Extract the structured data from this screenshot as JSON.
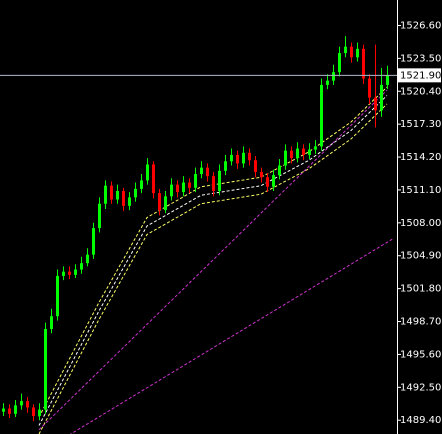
{
  "chart_data": {
    "type": "candlestick",
    "ylim": [
      1488.1,
      1529.0
    ],
    "yticks": [
      {
        "value": 1526.6,
        "label": "1526.60"
      },
      {
        "value": 1523.5,
        "label": "1523.50"
      },
      {
        "value": 1520.4,
        "label": "1520.40"
      },
      {
        "value": 1517.3,
        "label": "1517.30"
      },
      {
        "value": 1514.2,
        "label": "1514.20"
      },
      {
        "value": 1511.1,
        "label": "1511.10"
      },
      {
        "value": 1508.0,
        "label": "1508.00"
      },
      {
        "value": 1504.9,
        "label": "1504.90"
      },
      {
        "value": 1501.8,
        "label": "1501.80"
      },
      {
        "value": 1498.7,
        "label": "1498.70"
      },
      {
        "value": 1495.6,
        "label": "1495.60"
      },
      {
        "value": 1492.5,
        "label": "1492.50"
      },
      {
        "value": 1489.4,
        "label": "1489.40"
      }
    ],
    "current_price": {
      "value": 1521.9,
      "label": "1521.90"
    },
    "up_color": "#00ff00",
    "down_color": "#ff0000",
    "open": [
      1490.2,
      1490.5,
      1490.0,
      1490.8,
      1491.2,
      1490.6,
      1489.8,
      1490.4,
      1498.0,
      1499.2,
      1503.0,
      1503.4,
      1503.1,
      1503.6,
      1504.2,
      1505.0,
      1507.5,
      1509.8,
      1511.5,
      1510.2,
      1511.0,
      1509.6,
      1510.4,
      1511.2,
      1512.0,
      1513.5,
      1510.8,
      1509.2,
      1510.5,
      1511.6,
      1510.9,
      1511.8,
      1511.3,
      1512.6,
      1513.2,
      1512.4,
      1511.0,
      1512.9,
      1513.8,
      1514.4,
      1513.6,
      1514.6,
      1513.9,
      1512.8,
      1512.3,
      1511.4,
      1512.5,
      1513.4,
      1514.8,
      1514.1,
      1515.0,
      1514.4,
      1514.9,
      1515.2,
      1521.0,
      1521.4,
      1522.2,
      1524.0,
      1524.6,
      1523.6,
      1524.4,
      1521.6,
      1519.8,
      1518.6,
      1521.0
    ],
    "high": [
      1491.0,
      1490.9,
      1491.3,
      1491.9,
      1491.6,
      1490.9,
      1491.0,
      1498.6,
      1499.9,
      1503.6,
      1503.9,
      1503.9,
      1504.1,
      1504.8,
      1505.6,
      1508.0,
      1510.4,
      1512.0,
      1511.9,
      1511.6,
      1511.3,
      1510.9,
      1511.8,
      1512.6,
      1514.1,
      1513.8,
      1511.2,
      1511.0,
      1512.2,
      1512.0,
      1512.4,
      1512.2,
      1513.2,
      1513.8,
      1513.6,
      1512.8,
      1513.5,
      1514.4,
      1515.0,
      1514.8,
      1515.2,
      1515.0,
      1514.3,
      1513.2,
      1512.7,
      1513.0,
      1514.0,
      1515.4,
      1515.2,
      1515.6,
      1515.4,
      1515.5,
      1515.8,
      1521.6,
      1522.0,
      1522.9,
      1524.6,
      1525.6,
      1525.0,
      1525.0,
      1524.8,
      1522.0,
      1524.8,
      1522.6,
      1522.8
    ],
    "low": [
      1489.8,
      1489.6,
      1489.7,
      1490.4,
      1490.1,
      1489.3,
      1489.4,
      1490.0,
      1497.6,
      1498.8,
      1502.6,
      1502.7,
      1502.8,
      1503.2,
      1503.9,
      1504.6,
      1507.1,
      1509.3,
      1509.8,
      1509.8,
      1509.1,
      1509.2,
      1510.0,
      1510.8,
      1511.6,
      1510.3,
      1508.7,
      1508.9,
      1510.1,
      1510.4,
      1510.5,
      1510.8,
      1510.9,
      1512.2,
      1511.9,
      1510.5,
      1510.6,
      1512.5,
      1513.4,
      1513.1,
      1513.2,
      1513.4,
      1512.3,
      1511.8,
      1510.9,
      1511.0,
      1512.1,
      1513.0,
      1513.6,
      1513.7,
      1513.9,
      1514.0,
      1514.5,
      1514.8,
      1520.6,
      1521.0,
      1521.8,
      1523.6,
      1523.1,
      1523.2,
      1521.1,
      1519.2,
      1517.0,
      1518.0,
      1520.6
    ],
    "close": [
      1490.5,
      1490.0,
      1490.8,
      1491.2,
      1490.6,
      1489.8,
      1490.4,
      1498.0,
      1499.2,
      1503.0,
      1503.4,
      1503.1,
      1503.6,
      1504.2,
      1505.0,
      1507.5,
      1509.8,
      1511.5,
      1510.2,
      1511.0,
      1509.6,
      1510.4,
      1511.2,
      1512.0,
      1513.5,
      1510.8,
      1509.2,
      1510.5,
      1511.6,
      1510.9,
      1511.8,
      1511.3,
      1512.6,
      1513.2,
      1512.4,
      1511.0,
      1512.9,
      1513.8,
      1514.4,
      1513.6,
      1514.6,
      1513.9,
      1512.8,
      1512.3,
      1511.4,
      1512.5,
      1513.4,
      1514.8,
      1514.1,
      1515.0,
      1514.4,
      1514.9,
      1515.2,
      1521.0,
      1521.4,
      1522.2,
      1524.0,
      1524.6,
      1523.6,
      1524.4,
      1521.6,
      1519.8,
      1518.6,
      1521.0,
      1521.9
    ],
    "lines": [
      {
        "color": "#ffff66",
        "x": [
          6,
          16,
          24,
          33,
          43,
          51,
          58,
          64
        ],
        "values": [
          1489.7,
          1500.5,
          1508.5,
          1511.4,
          1512.3,
          1514.7,
          1517.5,
          1520.8
        ]
      },
      {
        "color": "#ffffff",
        "x": [
          6,
          16,
          24,
          33,
          43,
          51,
          58,
          64
        ],
        "values": [
          1488.9,
          1499.7,
          1507.7,
          1510.6,
          1511.5,
          1513.9,
          1516.7,
          1520.0
        ]
      },
      {
        "color": "#ffff66",
        "x": [
          6,
          16,
          24,
          33,
          43,
          51,
          58,
          64
        ],
        "values": [
          1488.1,
          1498.9,
          1506.9,
          1509.8,
          1510.7,
          1513.1,
          1515.9,
          1519.2
        ]
      },
      {
        "color": "#cc33cc",
        "x": [
          6,
          64
        ],
        "values": [
          1488.5,
          1520.5
        ]
      },
      {
        "color": "#cc33cc",
        "x": [
          11,
          65
        ],
        "values": [
          1488.0,
          1506.5
        ]
      }
    ]
  }
}
